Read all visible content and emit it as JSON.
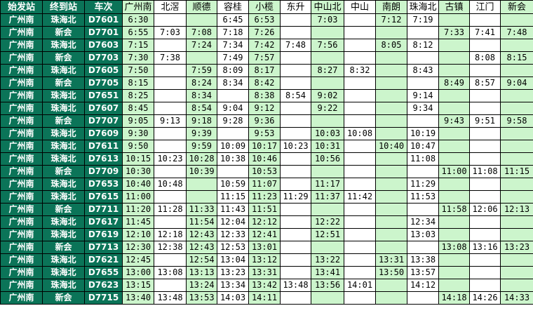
{
  "colors": {
    "header_dark": "#0b7458",
    "green_column": "#ccf5cc",
    "white_column": "#ffffff"
  },
  "headers": [
    "始发站",
    "终到站",
    "车次",
    "广州南",
    "北滘",
    "顺德",
    "容桂",
    "小榄",
    "东升",
    "中山北",
    "中山",
    "南朗",
    "珠海北",
    "古镇",
    "江门",
    "新会"
  ],
  "green_station_columns": [
    0,
    2,
    4,
    6,
    8,
    10,
    12
  ],
  "rows": [
    [
      "广州南",
      "珠海北",
      "D7601",
      "6:30",
      "",
      "",
      "6:45",
      "6:53",
      "",
      "7:03",
      "",
      "7:12",
      "7:19",
      "",
      "",
      ""
    ],
    [
      "广州南",
      "新会",
      "D7701",
      "6:55",
      "7:03",
      "7:08",
      "7:18",
      "7:26",
      "",
      "",
      "",
      "",
      "",
      "7:33",
      "7:41",
      "7:48"
    ],
    [
      "广州南",
      "珠海北",
      "D7603",
      "7:15",
      "",
      "7:24",
      "7:34",
      "7:42",
      "7:48",
      "7:56",
      "",
      "8:05",
      "8:12",
      "",
      "",
      ""
    ],
    [
      "广州南",
      "新会",
      "D7703",
      "7:30",
      "7:38",
      "",
      "7:49",
      "7:57",
      "",
      "",
      "",
      "",
      "",
      "",
      "8:08",
      "8:15"
    ],
    [
      "广州南",
      "珠海北",
      "D7605",
      "7:50",
      "",
      "7:59",
      "8:09",
      "8:17",
      "",
      "8:27",
      "8:32",
      "",
      "8:43",
      "",
      "",
      ""
    ],
    [
      "广州南",
      "新会",
      "D7705",
      "8:15",
      "",
      "8:24",
      "8:34",
      "8:42",
      "",
      "",
      "",
      "",
      "",
      "8:49",
      "8:57",
      "9:04"
    ],
    [
      "广州南",
      "珠海北",
      "D7651",
      "8:25",
      "",
      "8:34",
      "",
      "8:38",
      "8:54",
      "9:02",
      "",
      "",
      "9:14",
      "",
      "",
      ""
    ],
    [
      "广州南",
      "珠海北",
      "D7607",
      "8:45",
      "",
      "8:54",
      "9:04",
      "9:12",
      "",
      "9:22",
      "",
      "",
      "9:34",
      "",
      "",
      ""
    ],
    [
      "广州南",
      "新会",
      "D7707",
      "9:05",
      "9:13",
      "9:18",
      "9:28",
      "9:36",
      "",
      "",
      "",
      "",
      "",
      "9:43",
      "9:51",
      "9:58"
    ],
    [
      "广州南",
      "珠海北",
      "D7609",
      "9:30",
      "",
      "9:39",
      "",
      "9:53",
      "",
      "10:03",
      "10:08",
      "",
      "10:19",
      "",
      "",
      ""
    ],
    [
      "广州南",
      "珠海北",
      "D7611",
      "9:50",
      "",
      "9:59",
      "10:09",
      "10:17",
      "10:23",
      "10:31",
      "",
      "10:40",
      "10:47",
      "",
      "",
      ""
    ],
    [
      "广州南",
      "珠海北",
      "D7613",
      "10:15",
      "10:23",
      "10:28",
      "10:38",
      "10:46",
      "",
      "10:56",
      "",
      "",
      "11:08",
      "",
      "",
      ""
    ],
    [
      "广州南",
      "新会",
      "D7709",
      "10:30",
      "",
      "10:39",
      "",
      "10:53",
      "",
      "",
      "",
      "",
      "",
      "11:00",
      "11:08",
      "11:15"
    ],
    [
      "广州南",
      "珠海北",
      "D7653",
      "10:40",
      "10:48",
      "",
      "10:59",
      "11:07",
      "",
      "11:17",
      "",
      "",
      "11:29",
      "",
      "",
      ""
    ],
    [
      "广州南",
      "珠海北",
      "D7615",
      "11:00",
      "",
      "",
      "11:15",
      "11:23",
      "11:29",
      "11:37",
      "11:42",
      "",
      "11:53",
      "",
      "",
      ""
    ],
    [
      "广州南",
      "新会",
      "D7711",
      "11:20",
      "11:28",
      "11:33",
      "11:43",
      "11:51",
      "",
      "",
      "",
      "",
      "",
      "11:58",
      "12:06",
      "12:13"
    ],
    [
      "广州南",
      "珠海北",
      "D7617",
      "11:45",
      "",
      "11:54",
      "12:04",
      "12:12",
      "",
      "12:22",
      "",
      "",
      "12:34",
      "",
      "",
      ""
    ],
    [
      "广州南",
      "珠海北",
      "D7619",
      "12:10",
      "12:18",
      "12:43",
      "12:33",
      "12:41",
      "",
      "12:51",
      "",
      "",
      "13:03",
      "",
      "",
      ""
    ],
    [
      "广州南",
      "新会",
      "D7713",
      "12:30",
      "12:38",
      "12:43",
      "12:53",
      "13:01",
      "",
      "",
      "",
      "",
      "",
      "13:08",
      "13:16",
      "13:23"
    ],
    [
      "广州南",
      "珠海北",
      "D7621",
      "12:45",
      "",
      "12:54",
      "13:04",
      "13:12",
      "",
      "13:22",
      "",
      "13:31",
      "13:38",
      "",
      "",
      ""
    ],
    [
      "广州南",
      "珠海北",
      "D7655",
      "13:00",
      "13:08",
      "13:13",
      "13:23",
      "13:31",
      "",
      "13:41",
      "",
      "13:50",
      "13:57",
      "",
      "",
      ""
    ],
    [
      "广州南",
      "珠海北",
      "D7623",
      "13:15",
      "",
      "13:24",
      "13:34",
      "13:42",
      "13:48",
      "13:56",
      "14:01",
      "",
      "14:12",
      "",
      "",
      ""
    ],
    [
      "广州南",
      "新会",
      "D7715",
      "13:40",
      "13:48",
      "13:53",
      "14:03",
      "14:11",
      "",
      "",
      "",
      "",
      "",
      "14:18",
      "14:26",
      "14:33"
    ]
  ]
}
